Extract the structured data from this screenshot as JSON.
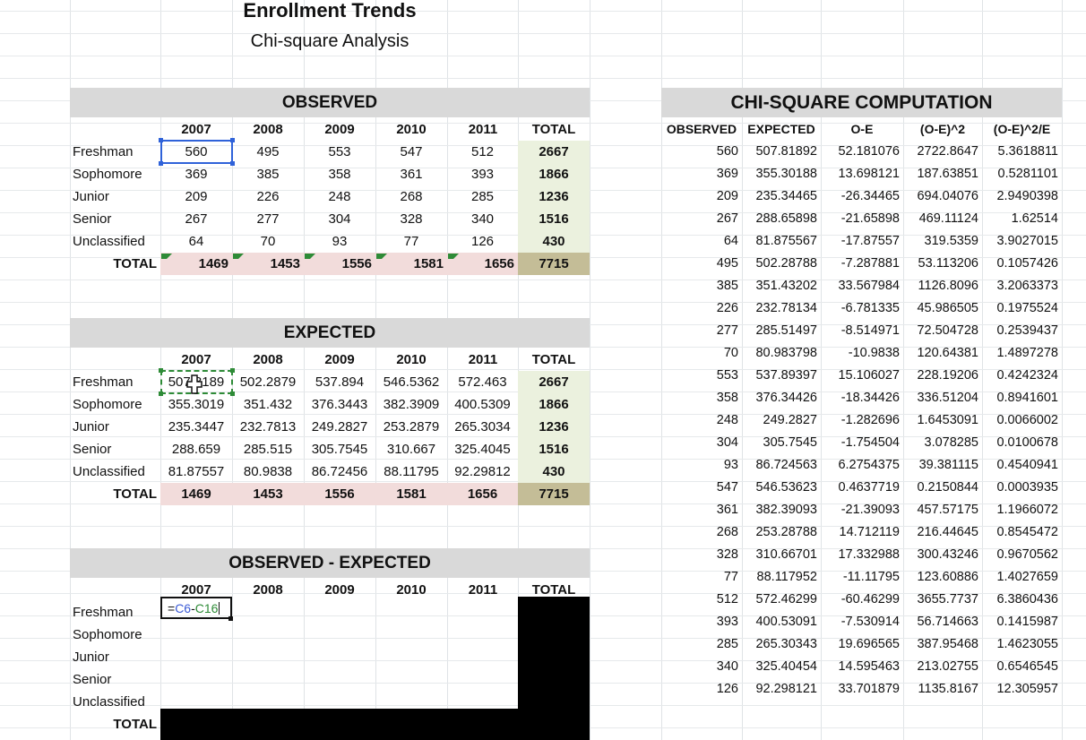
{
  "title": "Enrollment Trends",
  "subtitle": "Chi-square Analysis",
  "colors": {
    "header_gray": "#d9d9d9",
    "total_row": "#f2dcdb",
    "total_col": "#ebf1de",
    "grand_total": "#c4bd97",
    "select_blue": "#2f62d9",
    "formula_green": "#2e8b37",
    "formula_blue": "#3b5bd6"
  },
  "years": [
    "2007",
    "2008",
    "2009",
    "2010",
    "2011"
  ],
  "total_label": "TOTAL",
  "row_labels": [
    "Freshman",
    "Sophomore",
    "Junior",
    "Senior",
    "Unclassified"
  ],
  "observed": {
    "header": "OBSERVED",
    "rows": [
      [
        "560",
        "495",
        "553",
        "547",
        "512",
        "2667"
      ],
      [
        "369",
        "385",
        "358",
        "361",
        "393",
        "1866"
      ],
      [
        "209",
        "226",
        "248",
        "268",
        "285",
        "1236"
      ],
      [
        "267",
        "277",
        "304",
        "328",
        "340",
        "1516"
      ],
      [
        "64",
        "70",
        "93",
        "77",
        "126",
        "430"
      ]
    ],
    "totals": [
      "1469",
      "1453",
      "1556",
      "1581",
      "1656",
      "7715"
    ]
  },
  "expected": {
    "header": "EXPECTED",
    "rows": [
      [
        "507.8189",
        "502.2879",
        "537.894",
        "546.5362",
        "572.463",
        "2667"
      ],
      [
        "355.3019",
        "351.432",
        "376.3443",
        "382.3909",
        "400.5309",
        "1866"
      ],
      [
        "235.3447",
        "232.7813",
        "249.2827",
        "253.2879",
        "265.3034",
        "1236"
      ],
      [
        "288.659",
        "285.515",
        "305.7545",
        "310.667",
        "325.4045",
        "1516"
      ],
      [
        "81.87557",
        "80.9838",
        "86.72456",
        "88.11795",
        "92.29812",
        "430"
      ]
    ],
    "totals": [
      "1469",
      "1453",
      "1556",
      "1581",
      "1656",
      "7715"
    ]
  },
  "diff": {
    "header": "OBSERVED - EXPECTED",
    "formula_prefix": "=",
    "formula_ref1": "C6",
    "formula_op": "-",
    "formula_ref2": "C16"
  },
  "chi": {
    "header": "CHI-SQUARE COMPUTATION",
    "columns": [
      "OBSERVED",
      "EXPECTED",
      "O-E",
      "(O-E)^2",
      "(O-E)^2/E"
    ],
    "rows": [
      [
        "560",
        "507.81892",
        "52.181076",
        "2722.8647",
        "5.3618811"
      ],
      [
        "369",
        "355.30188",
        "13.698121",
        "187.63851",
        "0.5281101"
      ],
      [
        "209",
        "235.34465",
        "-26.34465",
        "694.04076",
        "2.9490398"
      ],
      [
        "267",
        "288.65898",
        "-21.65898",
        "469.11124",
        "1.62514"
      ],
      [
        "64",
        "81.875567",
        "-17.87557",
        "319.5359",
        "3.9027015"
      ],
      [
        "495",
        "502.28788",
        "-7.287881",
        "53.113206",
        "0.1057426"
      ],
      [
        "385",
        "351.43202",
        "33.567984",
        "1126.8096",
        "3.2063373"
      ],
      [
        "226",
        "232.78134",
        "-6.781335",
        "45.986505",
        "0.1975524"
      ],
      [
        "277",
        "285.51497",
        "-8.514971",
        "72.504728",
        "0.2539437"
      ],
      [
        "70",
        "80.983798",
        "-10.9838",
        "120.64381",
        "1.4897278"
      ],
      [
        "553",
        "537.89397",
        "15.106027",
        "228.19206",
        "0.4242324"
      ],
      [
        "358",
        "376.34426",
        "-18.34426",
        "336.51204",
        "0.8941601"
      ],
      [
        "248",
        "249.2827",
        "-1.282696",
        "1.6453091",
        "0.0066002"
      ],
      [
        "304",
        "305.7545",
        "-1.754504",
        "3.078285",
        "0.0100678"
      ],
      [
        "93",
        "86.724563",
        "6.2754375",
        "39.381115",
        "0.4540941"
      ],
      [
        "547",
        "546.53623",
        "0.4637719",
        "0.2150844",
        "0.0003935"
      ],
      [
        "361",
        "382.39093",
        "-21.39093",
        "457.57175",
        "1.1966072"
      ],
      [
        "268",
        "253.28788",
        "14.712119",
        "216.44645",
        "0.8545472"
      ],
      [
        "328",
        "310.66701",
        "17.332988",
        "300.43246",
        "0.9670562"
      ],
      [
        "77",
        "88.117952",
        "-11.11795",
        "123.60886",
        "1.4027659"
      ],
      [
        "512",
        "572.46299",
        "-60.46299",
        "3655.7737",
        "6.3860436"
      ],
      [
        "393",
        "400.53091",
        "-7.530914",
        "56.714663",
        "0.1415987"
      ],
      [
        "285",
        "265.30343",
        "19.696565",
        "387.95468",
        "1.4623055"
      ],
      [
        "340",
        "325.40454",
        "14.595463",
        "213.02755",
        "0.6546545"
      ],
      [
        "126",
        "92.298121",
        "33.701879",
        "1135.8167",
        "12.305957"
      ]
    ]
  }
}
